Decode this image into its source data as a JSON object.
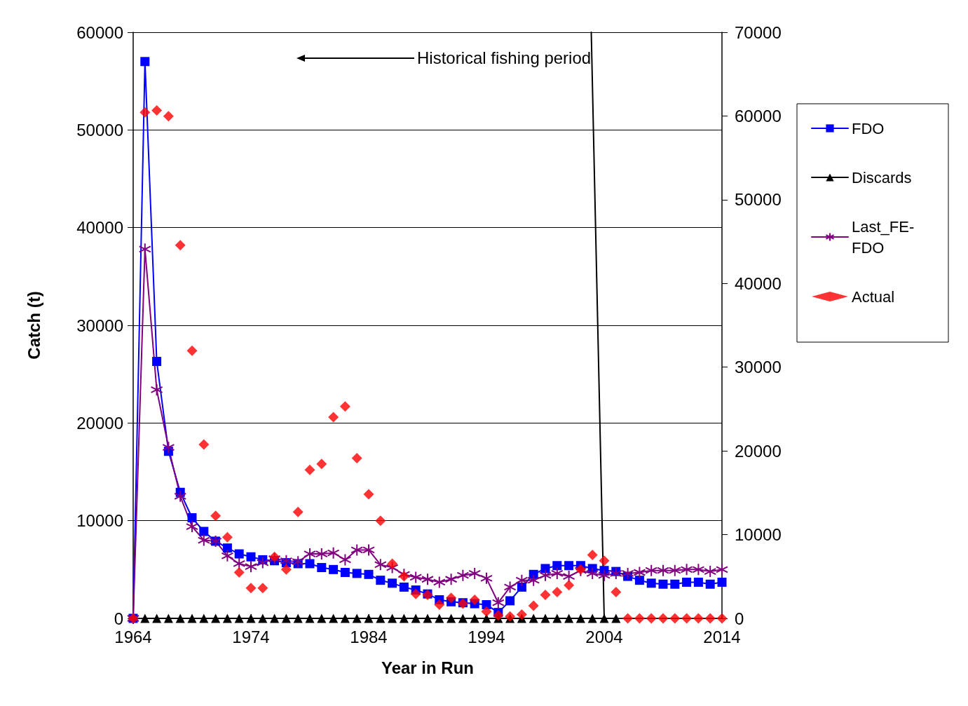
{
  "chart_data": {
    "type": "line",
    "xlabel": "Year in Run",
    "ylabel": "Catch (t)",
    "x": [
      1964,
      1965,
      1966,
      1967,
      1968,
      1969,
      1970,
      1971,
      1972,
      1973,
      1974,
      1975,
      1976,
      1977,
      1978,
      1979,
      1980,
      1981,
      1982,
      1983,
      1984,
      1985,
      1986,
      1987,
      1988,
      1989,
      1990,
      1991,
      1992,
      1993,
      1994,
      1995,
      1996,
      1997,
      1998,
      1999,
      2000,
      2001,
      2002,
      2003,
      2004,
      2005,
      2006,
      2007,
      2008,
      2009,
      2010,
      2011,
      2012,
      2013,
      2014
    ],
    "series": [
      {
        "name": "FDO",
        "color": "#0000ff",
        "marker": "square",
        "values": [
          0,
          57000,
          26300,
          17100,
          12900,
          10300,
          8900,
          7900,
          7200,
          6600,
          6300,
          6000,
          5900,
          5700,
          5600,
          5600,
          5200,
          5000,
          4700,
          4600,
          4500,
          3900,
          3600,
          3200,
          2900,
          2500,
          1900,
          1700,
          1600,
          1500,
          1400,
          600,
          1800,
          3200,
          4500,
          5100,
          5400,
          5400,
          5400,
          5100,
          4900,
          4800,
          4300,
          3900,
          3600,
          3500,
          3500,
          3700,
          3700,
          3500,
          3700
        ]
      },
      {
        "name": "Discards",
        "color": "#000000",
        "marker": "triangle",
        "values": [
          null,
          0,
          0,
          0,
          0,
          0,
          0,
          0,
          0,
          0,
          0,
          0,
          0,
          0,
          0,
          0,
          0,
          0,
          0,
          0,
          0,
          0,
          0,
          0,
          0,
          0,
          0,
          0,
          0,
          0,
          0,
          0,
          0,
          0,
          0,
          0,
          0,
          0,
          0,
          0,
          0,
          0,
          null,
          null,
          null,
          null,
          null,
          null,
          null,
          null,
          null
        ]
      },
      {
        "name": "Last_FE-FDO",
        "color": "#800080",
        "marker": "cross",
        "values": [
          0,
          37800,
          23400,
          17500,
          12500,
          9400,
          8000,
          7900,
          6400,
          5600,
          5300,
          5700,
          6100,
          5900,
          5800,
          6600,
          6600,
          6700,
          6000,
          7000,
          7000,
          5500,
          5200,
          4500,
          4200,
          4000,
          3700,
          4000,
          4400,
          4600,
          4100,
          1600,
          3200,
          3900,
          3900,
          4400,
          4600,
          4300,
          4900,
          4600,
          4400,
          4600,
          4600,
          4700,
          4900,
          4900,
          4900,
          5000,
          5000,
          4800,
          5000
        ]
      },
      {
        "name": "Actual",
        "type": "scatter",
        "color": "#ff0000",
        "marker": "diamond",
        "values": [
          0,
          51800,
          52000,
          51400,
          38200,
          27400,
          17800,
          10500,
          8300,
          4700,
          3100,
          3100,
          6300,
          5000,
          10900,
          15200,
          15800,
          20600,
          21700,
          16400,
          12700,
          10000,
          5600,
          4300,
          2500,
          2400,
          1400,
          2100,
          1500,
          1900,
          700,
          300,
          200,
          400,
          1300,
          2400,
          2700,
          3400,
          5000,
          6500,
          5900,
          2700,
          0,
          0,
          0,
          0,
          0,
          0,
          0,
          0,
          0
        ]
      },
      {
        "color": "#000000",
        "marker": "none",
        "x": [
          2002.9,
          2004.0
        ],
        "values": [
          60000,
          0
        ]
      }
    ],
    "xlim": [
      1964,
      2014
    ],
    "xticks": [
      1964,
      1974,
      1984,
      1994,
      2004,
      2014
    ],
    "ylim": [
      0,
      60000
    ],
    "yticks": [
      0,
      10000,
      20000,
      30000,
      40000,
      50000,
      60000
    ],
    "y2lim": [
      0,
      70000
    ],
    "y2ticks": [
      0,
      10000,
      20000,
      30000,
      40000,
      50000,
      60000,
      70000
    ],
    "grid": "y",
    "legend": "right",
    "line_style": "solid",
    "annotations": [
      "Historical fishing period"
    ]
  }
}
